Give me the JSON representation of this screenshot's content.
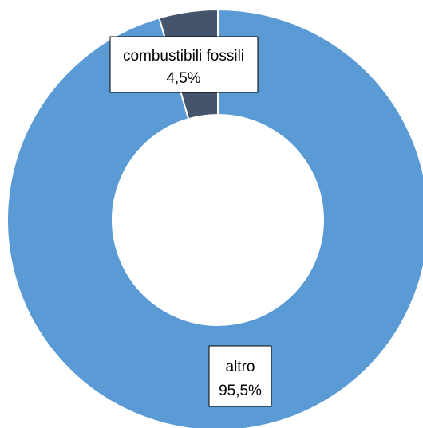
{
  "chart_data": {
    "type": "pie",
    "variant": "doughnut",
    "title": "",
    "categories": [
      "combustibili fossili",
      "altro"
    ],
    "values": [
      4.5,
      95.5
    ],
    "value_labels": [
      "4,5%",
      "95,5%"
    ],
    "colors": [
      "#44546a",
      "#5b9bd5"
    ],
    "legend": "none",
    "data_labels": [
      {
        "name": "combustibili fossili",
        "value": "4,5%"
      },
      {
        "name": "altro",
        "value": "95,5%"
      }
    ]
  }
}
